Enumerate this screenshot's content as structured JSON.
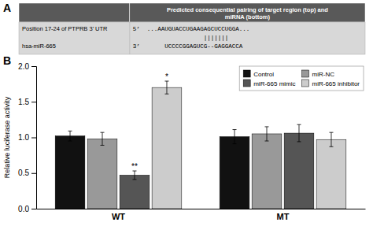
{
  "chart_data": [
    {
      "type": "table",
      "panel_label": "A",
      "header": "Predicted consequential pairing of target region (top) and\nmiRNA (bottom)",
      "rows": [
        {
          "label": "Position 17-24 of PTPRB 3’ UTR",
          "sequence": "5’  ...AAUGUACCUGAAGAGCUCCUGGA..."
        },
        {
          "sequence": "                    |||||||"
        },
        {
          "label": "hsa-miR-665",
          "sequence": "3’       UCCCCGGAGUCG--GAGGACCA"
        }
      ]
    },
    {
      "type": "bar",
      "panel_label": "B",
      "categories": [
        "WT",
        "MT"
      ],
      "series": [
        {
          "name": "Control",
          "color": "#111111",
          "values": [
            1.02,
            1.01
          ],
          "errors": [
            0.07,
            0.1
          ]
        },
        {
          "name": "miR-NC",
          "color": "#999999",
          "values": [
            0.98,
            1.05
          ],
          "errors": [
            0.09,
            0.1
          ]
        },
        {
          "name": "miR-665 mimic",
          "color": "#555555",
          "values": [
            0.47,
            1.06
          ],
          "errors": [
            0.06,
            0.12
          ]
        },
        {
          "name": "miR-665 inhibitor",
          "color": "#cccccc",
          "values": [
            1.7,
            0.97
          ],
          "errors": [
            0.09,
            0.1
          ]
        }
      ],
      "ylabel": "Relative luciferase activity",
      "ylim": [
        0,
        2.0
      ],
      "yticks": [
        {
          "value": 0,
          "label": "0.0"
        },
        0.5,
        {
          "value": 1,
          "label": "1.0"
        },
        1.5,
        {
          "value": 2,
          "label": "2.0"
        }
      ],
      "annotations": [
        {
          "text": "**",
          "series": "miR-665 mimic",
          "category": "WT"
        },
        {
          "text": "*",
          "series": "miR-665 inhibitor",
          "category": "WT"
        }
      ],
      "legend": "upper right"
    }
  ]
}
